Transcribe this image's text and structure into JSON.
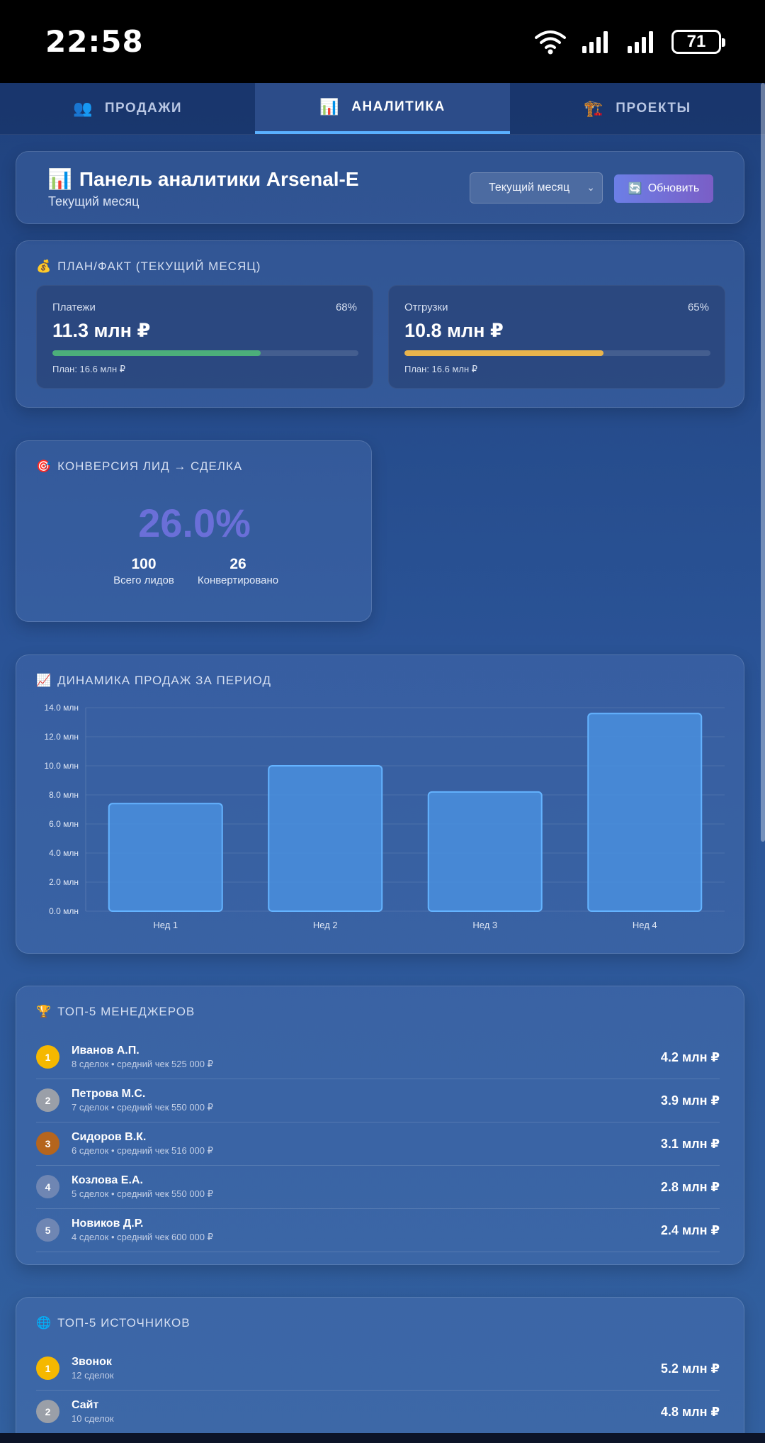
{
  "status_bar": {
    "time": "22:58",
    "battery": "71"
  },
  "tabs": [
    {
      "icon": "👥",
      "label": "ПРОДАЖИ",
      "active": false
    },
    {
      "icon": "📊",
      "label": "АНАЛИТИКА",
      "active": true
    },
    {
      "icon": "🏗️",
      "label": "ПРОЕКТЫ",
      "active": false
    }
  ],
  "header": {
    "icon": "📊",
    "title": "Панель аналитики Arsenal-E",
    "subtitle": "Текущий месяц",
    "period_select": "Текущий месяц",
    "refresh_icon": "🔄",
    "refresh_label": "Обновить"
  },
  "plan_fact": {
    "icon": "💰",
    "title": "ПЛАН/ФАКТ (ТЕКУЩИЙ МЕСЯЦ)",
    "metrics": [
      {
        "label": "Платежи",
        "percent": "68%",
        "value": "11.3 млн ₽",
        "plan": "План: 16.6 млн ₽",
        "progress": 0.68,
        "color": "#4caf7a"
      },
      {
        "label": "Отгрузки",
        "percent": "65%",
        "value": "10.8 млн ₽",
        "plan": "План: 16.6 млн ₽",
        "progress": 0.65,
        "color": "#e9b44c"
      }
    ]
  },
  "conversion": {
    "icon": "🎯",
    "title": "КОНВЕРСИЯ ЛИД → СДЕЛКА",
    "rate": "26.0%",
    "total_leads": "100",
    "total_leads_label": "Всего лидов",
    "converted": "26",
    "converted_label": "Конвертировано"
  },
  "sales_chart": {
    "icon": "📈",
    "title": "ДИНАМИКА ПРОДАЖ ЗА ПЕРИОД"
  },
  "chart_data": {
    "type": "bar",
    "title": "ДИНАМИКА ПРОДАЖ ЗА ПЕРИОД",
    "categories": [
      "Нед 1",
      "Нед 2",
      "Нед 3",
      "Нед 4"
    ],
    "values": [
      7.4,
      10.0,
      8.2,
      13.6
    ],
    "unit": "млн",
    "ylim": [
      0,
      14
    ],
    "yticks": [
      "0.0 млн",
      "2.0 млн",
      "4.0 млн",
      "6.0 млн",
      "8.0 млн",
      "10.0 млн",
      "12.0 млн",
      "14.0 млн"
    ],
    "grid": true,
    "bar_color": "#4a8fde"
  },
  "managers": {
    "icon": "🏆",
    "title": "ТОП-5 МЕНЕДЖЕРОВ",
    "items": [
      {
        "rank": "1",
        "name": "Иванов А.П.",
        "sub": "8 сделок • средний чек 525 000 ₽",
        "value": "4.2 млн ₽",
        "badge_color": "#f5b800"
      },
      {
        "rank": "2",
        "name": "Петрова М.С.",
        "sub": "7 сделок • средний чек 550 000 ₽",
        "value": "3.9 млн ₽",
        "badge_color": "#9a9fa8"
      },
      {
        "rank": "3",
        "name": "Сидоров В.К.",
        "sub": "6 сделок • средний чек 516 000 ₽",
        "value": "3.1 млн ₽",
        "badge_color": "#b5651d"
      },
      {
        "rank": "4",
        "name": "Козлова Е.А.",
        "sub": "5 сделок • средний чек 550 000 ₽",
        "value": "2.8 млн ₽",
        "badge_color": "#6f86b3"
      },
      {
        "rank": "5",
        "name": "Новиков Д.Р.",
        "sub": "4 сделок • средний чек 600 000 ₽",
        "value": "2.4 млн ₽",
        "badge_color": "#6f86b3"
      }
    ]
  },
  "sources": {
    "icon": "🌐",
    "title": "ТОП-5 ИСТОЧНИКОВ",
    "items": [
      {
        "rank": "1",
        "name": "Звонок",
        "sub": "12 сделок",
        "value": "5.2 млн ₽",
        "badge_color": "#f5b800"
      },
      {
        "rank": "2",
        "name": "Сайт",
        "sub": "10 сделок",
        "value": "4.8 млн ₽",
        "badge_color": "#9a9fa8"
      }
    ]
  }
}
